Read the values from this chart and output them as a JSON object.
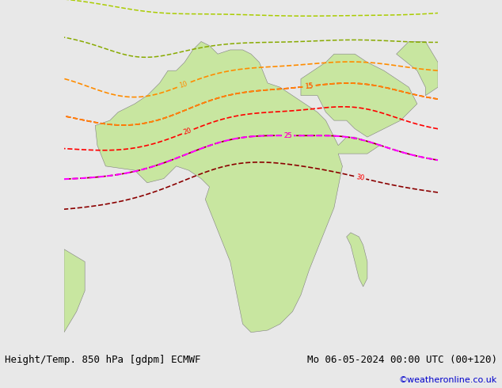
{
  "title_left": "Height/Temp. 850 hPa [gdpm] ECMWF",
  "title_right": "Mo 06-05-2024 00:00 UTC (00+120)",
  "credit": "©weatheronline.co.uk",
  "bg_color": "#e8e8e8",
  "land_color": "#c8e6a0",
  "sea_color": "#e0e0e0",
  "fig_width": 6.34,
  "fig_height": 4.9,
  "dpi": 100,
  "title_fontsize": 9,
  "credit_fontsize": 8,
  "credit_color": "#0000cc",
  "map_extent": [
    -25,
    65,
    -40,
    45
  ],
  "black_contour_lw": 2.0,
  "temp_contour_lw": 1.2
}
